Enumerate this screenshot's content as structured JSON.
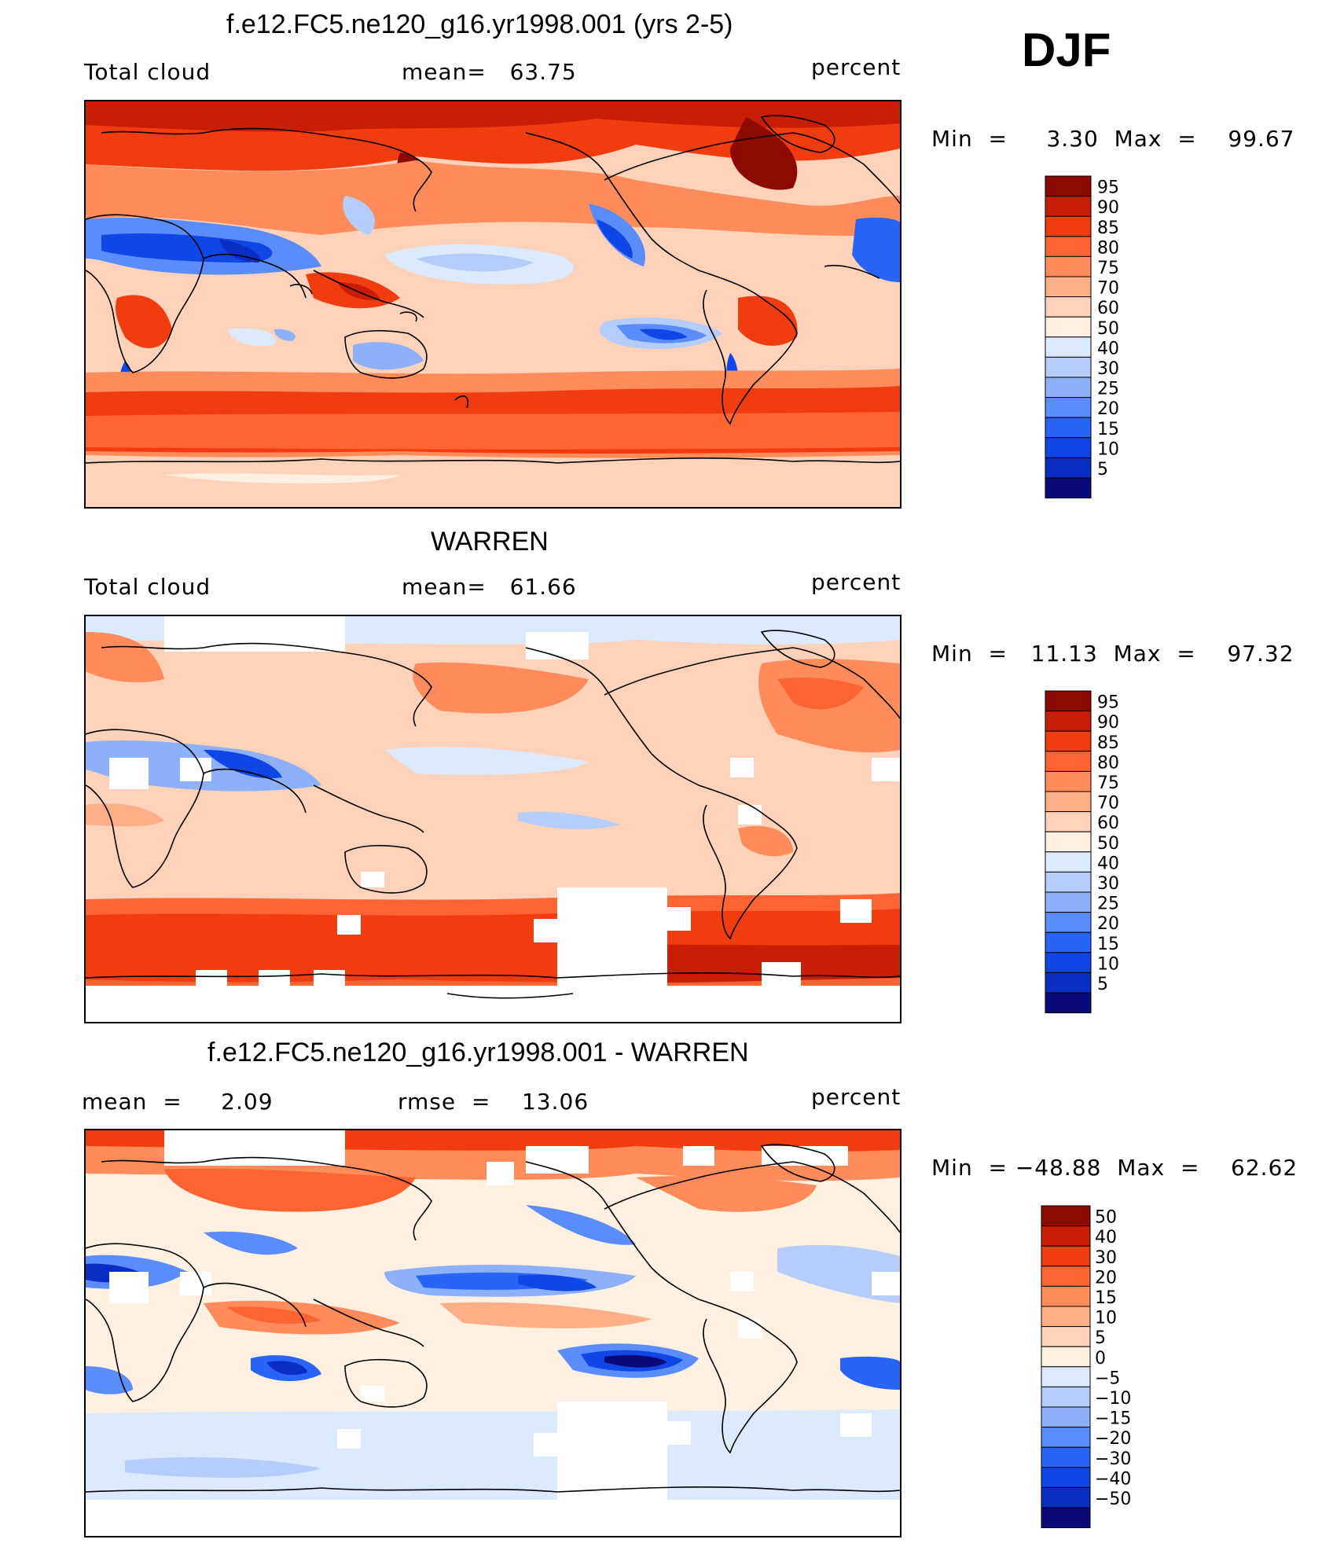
{
  "season": "DJF",
  "palette": {
    "full": [
      "#0a0a78",
      "#0a2dc3",
      "#0f46e6",
      "#2864f5",
      "#5a8cfa",
      "#8cb0fa",
      "#b4cdfa",
      "#dceaff",
      "#fff0e1",
      "#ffd2b9",
      "#ffaf87",
      "#ff8c5a",
      "#ff6432",
      "#f03c0f",
      "#c81e05",
      "#8c0a00"
    ],
    "anom": [
      "#0a0a78",
      "#0a2dc3",
      "#0f46e6",
      "#2864f5",
      "#5a8cfa",
      "#8cb0fa",
      "#b4cdfa",
      "#dceaff",
      "#fff0e1",
      "#ffd2b9",
      "#ffaf87",
      "#ff8c5a",
      "#ff6432",
      "#f03c0f",
      "#c81e05",
      "#8c0a00"
    ]
  },
  "chart_data": [
    {
      "type": "heatmap",
      "title": "f.e12.FC5.ne120_g16.yr1998.001 (yrs 2-5)",
      "left_label": "Total cloud",
      "mean_text": "mean=   63.75",
      "units": "percent",
      "minmax_text": "Min  =     3.30  Max  =    99.67",
      "stats": {
        "mean": 63.75,
        "min": 3.3,
        "max": 99.67
      },
      "colorbar_levels": [
        "95",
        "90",
        "85",
        "80",
        "75",
        "70",
        "60",
        "50",
        "40",
        "30",
        "25",
        "20",
        "15",
        "10",
        "5"
      ],
      "field_features": {
        "tropical_low_bands": "blue over Sahara/Arabia and SE Pacific",
        "storm_tracks": "red in midlatitudes and Southern Ocean"
      }
    },
    {
      "type": "heatmap",
      "title": "WARREN",
      "left_label": "Total cloud",
      "mean_text": "mean=   61.66",
      "units": "percent",
      "minmax_text": "Min  =   11.13  Max  =    97.32",
      "stats": {
        "mean": 61.66,
        "min": 11.13,
        "max": 97.32
      },
      "colorbar_levels": [
        "95",
        "90",
        "85",
        "80",
        "75",
        "70",
        "60",
        "50",
        "40",
        "30",
        "25",
        "20",
        "15",
        "10",
        "5"
      ]
    },
    {
      "type": "heatmap",
      "title": "f.e12.FC5.ne120_g16.yr1998.001 - WARREN",
      "left_label": "mean  =     2.09",
      "mean_text": "rmse  =    13.06",
      "units": "percent",
      "minmax_text": "Min  = −48.88  Max  =    62.62",
      "stats": {
        "mean": 2.09,
        "rmse": 13.06,
        "min": -48.88,
        "max": 62.62
      },
      "colorbar_levels": [
        "50",
        "40",
        "30",
        "20",
        "15",
        "10",
        "5",
        "0",
        "−5",
        "−10",
        "−15",
        "−20",
        "−30",
        "−40",
        "−50"
      ]
    }
  ]
}
